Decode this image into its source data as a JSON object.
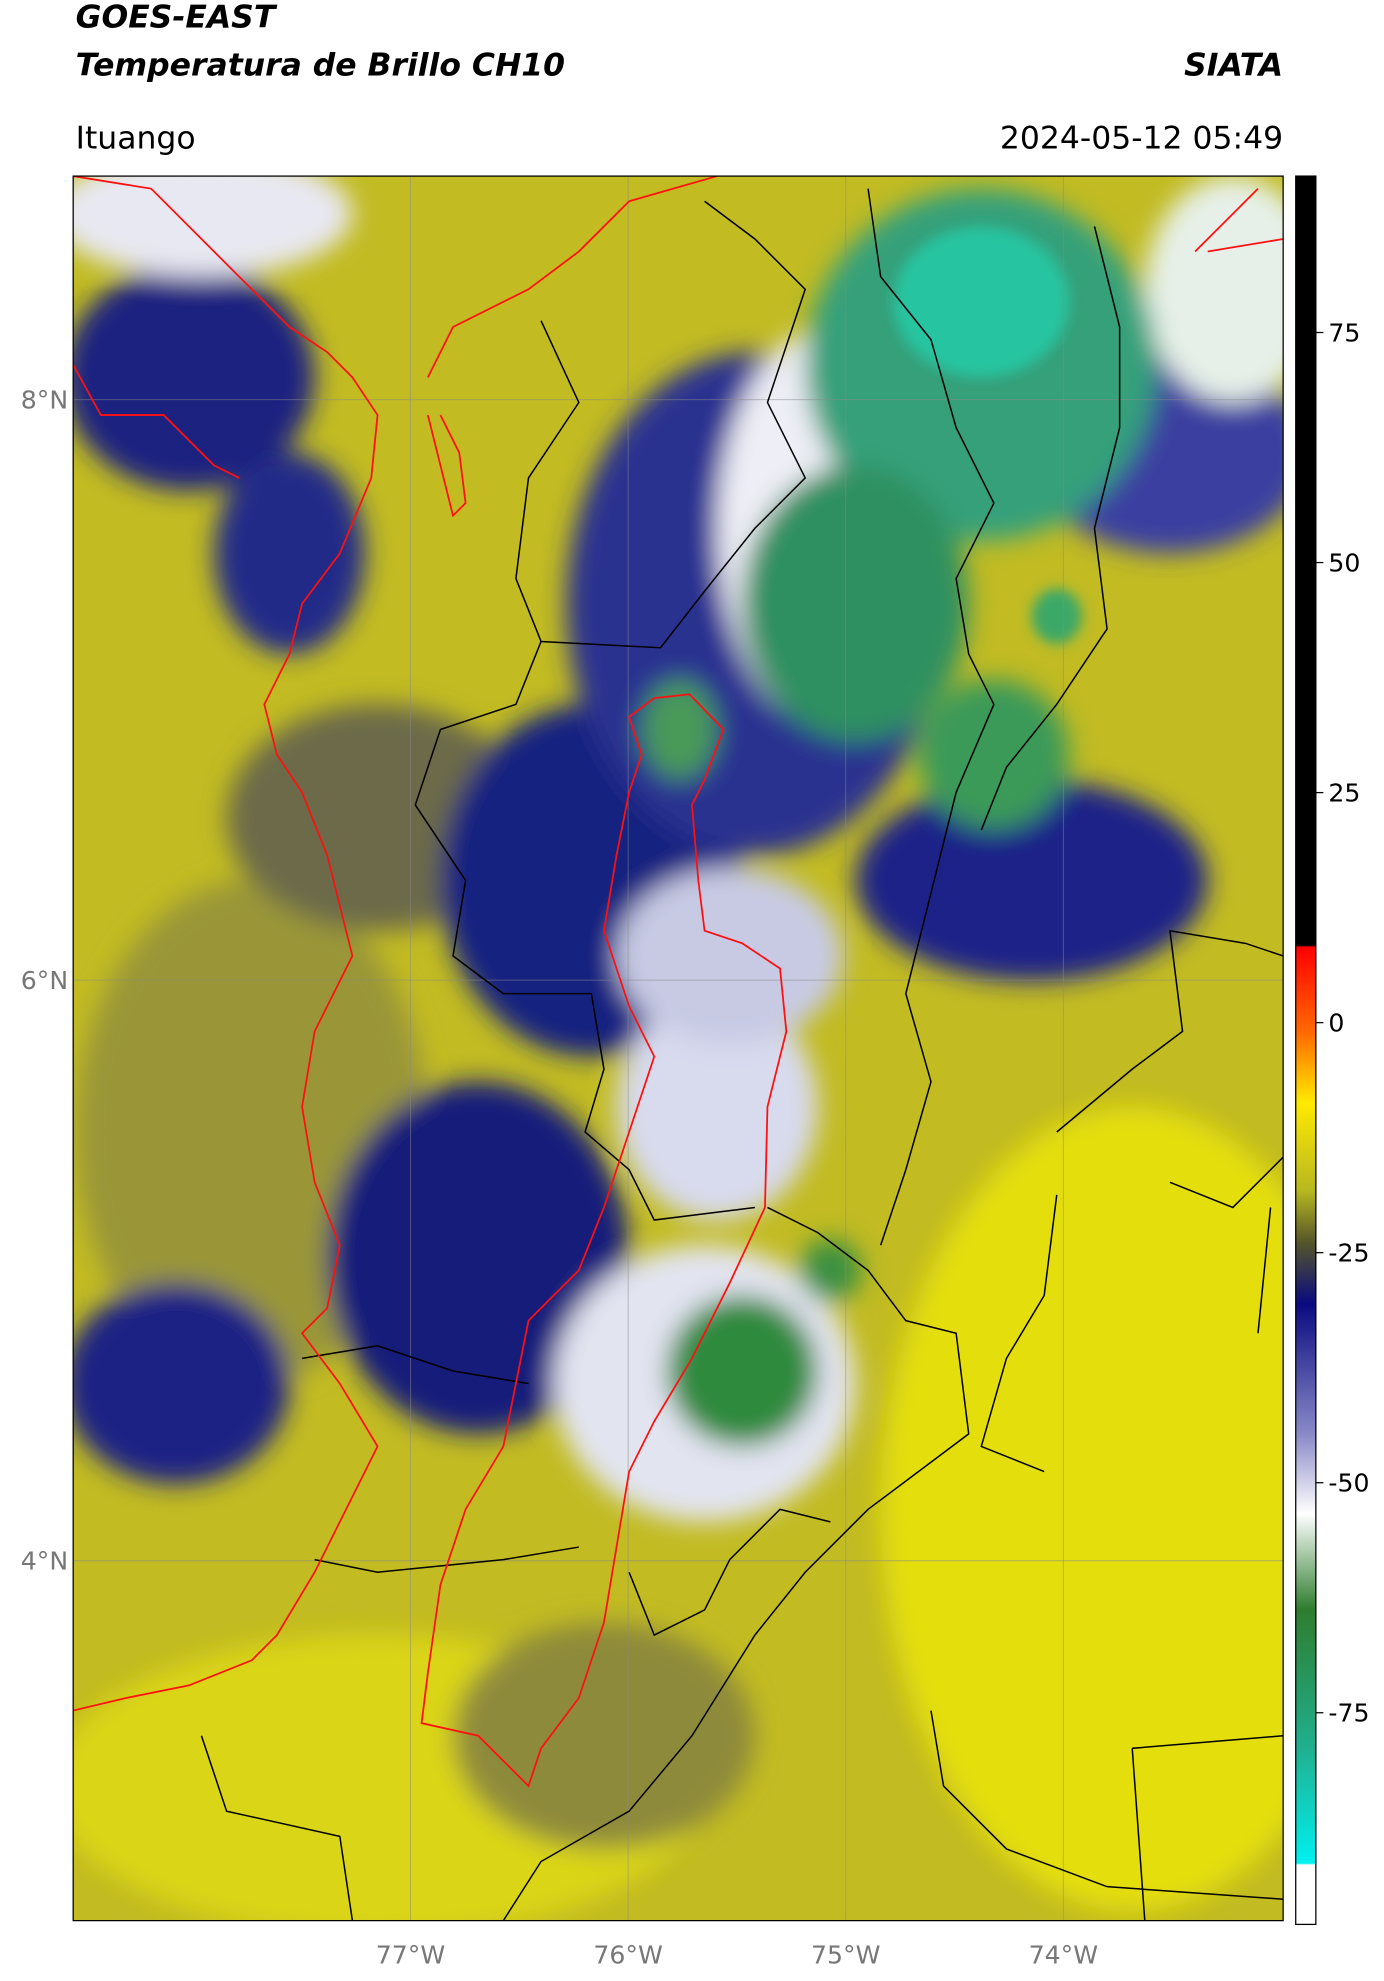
{
  "chart_data": {
    "type": "map",
    "title": "GOES-EAST",
    "subtitle": "Temperatura de Brillo CH10",
    "source": "SIATA",
    "location": "Ituango",
    "datetime": "2024-05-12 05:49",
    "xlim": [
      -78.55,
      -72.99
    ],
    "ylim": [
      2.76,
      8.77
    ],
    "xticks": [
      {
        "value": -77,
        "label": "77°W"
      },
      {
        "value": -76,
        "label": "76°W"
      },
      {
        "value": -75,
        "label": "75°W"
      },
      {
        "value": -74,
        "label": "74°W"
      }
    ],
    "yticks": [
      {
        "value": 8,
        "label": "8°N"
      },
      {
        "value": 6,
        "label": "6°N"
      },
      {
        "value": 4,
        "label": "4°N"
      }
    ],
    "grid": true,
    "colorbar": {
      "lim": [
        -98,
        92
      ],
      "ticks": [
        75,
        50,
        25,
        0,
        -25,
        -50,
        -75
      ]
    }
  }
}
